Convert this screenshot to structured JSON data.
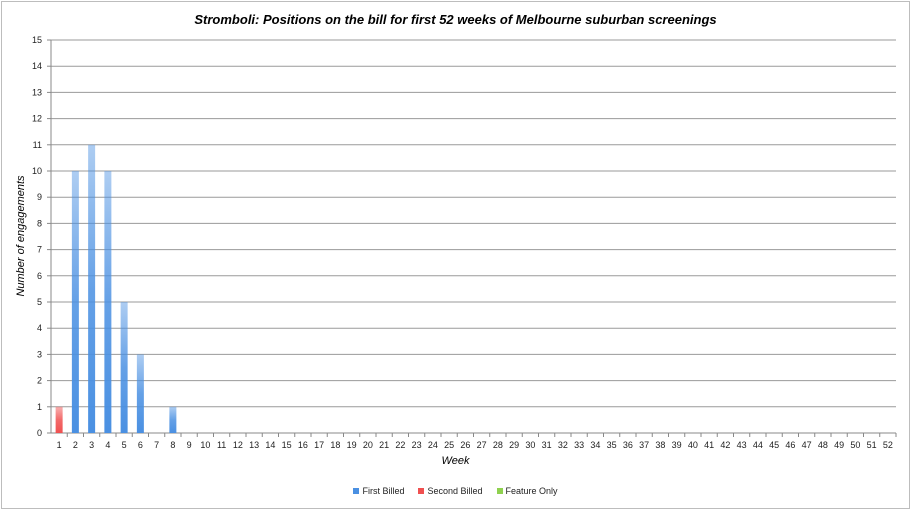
{
  "chart_data": {
    "type": "bar",
    "stacked": true,
    "title": "Stromboli: Positions on the bill for first 52 weeks of Melbourne suburban screenings",
    "xlabel": "Week",
    "ylabel": "Number of engagements",
    "ylim": [
      0,
      15
    ],
    "yticks": [
      0,
      1,
      2,
      3,
      4,
      5,
      6,
      7,
      8,
      9,
      10,
      11,
      12,
      13,
      14,
      15
    ],
    "grid": true,
    "legend_position": "bottom",
    "categories": [
      1,
      2,
      3,
      4,
      5,
      6,
      7,
      8,
      9,
      10,
      11,
      12,
      13,
      14,
      15,
      16,
      17,
      18,
      19,
      20,
      21,
      22,
      23,
      24,
      25,
      26,
      27,
      28,
      29,
      30,
      31,
      32,
      33,
      34,
      35,
      36,
      37,
      38,
      39,
      40,
      41,
      42,
      43,
      44,
      45,
      46,
      47,
      48,
      49,
      50,
      51,
      52
    ],
    "series": [
      {
        "name": "First Billed",
        "color": "#4a90e2",
        "values": [
          0,
          10,
          11,
          10,
          5,
          3,
          0,
          1,
          0,
          0,
          0,
          0,
          0,
          0,
          0,
          0,
          0,
          0,
          0,
          0,
          0,
          0,
          0,
          0,
          0,
          0,
          0,
          0,
          0,
          0,
          0,
          0,
          0,
          0,
          0,
          0,
          0,
          0,
          0,
          0,
          0,
          0,
          0,
          0,
          0,
          0,
          0,
          0,
          0,
          0,
          0,
          0
        ]
      },
      {
        "name": "Second Billed",
        "color": "#f05050",
        "values": [
          1,
          0,
          0,
          0,
          0,
          0,
          0,
          0,
          0,
          0,
          0,
          0,
          0,
          0,
          0,
          0,
          0,
          0,
          0,
          0,
          0,
          0,
          0,
          0,
          0,
          0,
          0,
          0,
          0,
          0,
          0,
          0,
          0,
          0,
          0,
          0,
          0,
          0,
          0,
          0,
          0,
          0,
          0,
          0,
          0,
          0,
          0,
          0,
          0,
          0,
          0,
          0
        ]
      },
      {
        "name": "Feature Only",
        "color": "#8fd14f",
        "values": [
          0,
          0,
          0,
          0,
          0,
          0,
          0,
          0,
          0,
          0,
          0,
          0,
          0,
          0,
          0,
          0,
          0,
          0,
          0,
          0,
          0,
          0,
          0,
          0,
          0,
          0,
          0,
          0,
          0,
          0,
          0,
          0,
          0,
          0,
          0,
          0,
          0,
          0,
          0,
          0,
          0,
          0,
          0,
          0,
          0,
          0,
          0,
          0,
          0,
          0,
          0,
          0
        ]
      }
    ]
  }
}
